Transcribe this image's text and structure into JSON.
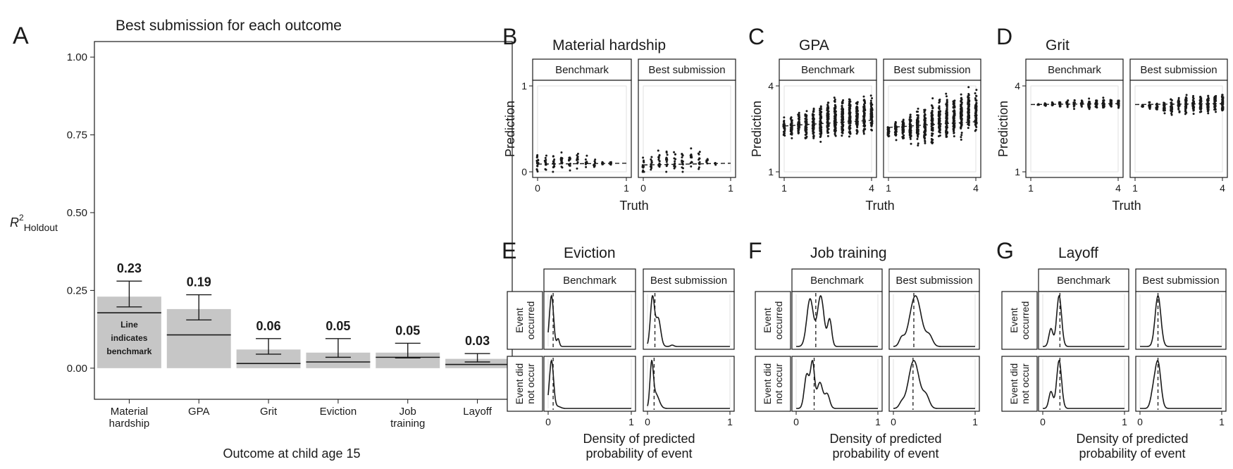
{
  "colors": {
    "bar": "#c6c6c6",
    "ink": "#1a1a1a",
    "grid": "#e2e2e2",
    "frame": "#1a1a1a"
  },
  "panel_labels": [
    "A",
    "B",
    "C",
    "D",
    "E",
    "F",
    "G"
  ],
  "panel_a": {
    "letter": "A",
    "title": "Best submission for each outcome",
    "xlabel": "Outcome at child age 15",
    "ylabel_main": "R",
    "ylabel_sup": "2",
    "ylabel_sub": "Holdout",
    "annotation": [
      "Line",
      "indicates",
      "benchmark"
    ]
  },
  "facet_labels": {
    "left": "Benchmark",
    "right": "Best submission"
  },
  "row_labels": {
    "top": [
      "Event",
      "occurred"
    ],
    "bottom": [
      "Event did",
      "not occur"
    ]
  },
  "scatter_axis": {
    "xlabel": "Truth",
    "ylabel": "Prediction"
  },
  "density_axis": {
    "xlabel": [
      "Density of predicted",
      "probability of event"
    ]
  },
  "chart_data": [
    {
      "type": "bar",
      "panel": "A",
      "title": "Best submission for each outcome",
      "xlabel": "Outcome at child age 15",
      "ylabel": "R2 Holdout",
      "ylim": [
        -0.1,
        1.05
      ],
      "yticks": [
        "0.00",
        "0.25",
        "0.50",
        "0.75",
        "1.00"
      ],
      "categories": [
        "Material hardship",
        "GPA",
        "Grit",
        "Eviction",
        "Job training",
        "Layoff"
      ],
      "category_lines": [
        [
          "Material",
          "hardship"
        ],
        [
          "GPA"
        ],
        [
          "Grit"
        ],
        [
          "Eviction"
        ],
        [
          "Job",
          "training"
        ],
        [
          "Layoff"
        ]
      ],
      "values": [
        0.23,
        0.19,
        0.06,
        0.05,
        0.05,
        0.03
      ],
      "value_labels": [
        "0.23",
        "0.19",
        "0.06",
        "0.05",
        "0.05",
        "0.03"
      ],
      "benchmark": [
        0.178,
        0.107,
        0.015,
        0.02,
        0.035,
        0.012
      ],
      "error_low": [
        0.197,
        0.155,
        0.045,
        0.035,
        0.033,
        0.02
      ],
      "error_high": [
        0.28,
        0.236,
        0.095,
        0.095,
        0.08,
        0.047
      ]
    },
    {
      "type": "scatter",
      "panel": "B",
      "title": "Material hardship",
      "xlabel": "Truth",
      "ylabel": "Prediction",
      "xlim": [
        0,
        1
      ],
      "ylim": [
        0,
        1
      ],
      "xticks": [
        "0",
        "1"
      ],
      "yticks": [
        "0",
        "1"
      ],
      "truth_levels": [
        0,
        0.09,
        0.18,
        0.27,
        0.36,
        0.45,
        0.55,
        0.64,
        0.73,
        0.82
      ],
      "facets": [
        {
          "name": "Benchmark",
          "center": [
            0.09,
            0.1,
            0.11,
            0.12,
            0.12,
            0.12,
            0.12,
            0.11,
            0.1,
            0.1
          ],
          "spread": [
            0.25,
            0.2,
            0.2,
            0.2,
            0.19,
            0.17,
            0.14,
            0.11,
            0.05,
            0.03
          ],
          "fit": [
            0.09,
            0.1
          ]
        },
        {
          "name": "Best submission",
          "center": [
            0.07,
            0.09,
            0.1,
            0.12,
            0.13,
            0.14,
            0.15,
            0.14,
            0.12,
            0.1
          ],
          "spread": [
            0.2,
            0.2,
            0.2,
            0.22,
            0.22,
            0.2,
            0.2,
            0.17,
            0.08,
            0.03
          ],
          "fit": [
            0.08,
            0.1
          ]
        }
      ]
    },
    {
      "type": "scatter",
      "panel": "C",
      "title": "GPA",
      "xlabel": "Truth",
      "ylabel": "Prediction",
      "xlim": [
        1,
        4
      ],
      "ylim": [
        1,
        4
      ],
      "xticks": [
        "1",
        "4"
      ],
      "yticks": [
        "1",
        "4"
      ],
      "truth_levels": [
        1,
        1.25,
        1.5,
        1.75,
        2,
        2.25,
        2.5,
        2.75,
        3,
        3.25,
        3.5,
        3.75,
        4
      ],
      "facets": [
        {
          "name": "Benchmark",
          "center": [
            2.55,
            2.58,
            2.62,
            2.65,
            2.7,
            2.73,
            2.78,
            2.82,
            2.86,
            2.9,
            2.95,
            2.98,
            3.0
          ],
          "spread": [
            0.5,
            0.6,
            0.7,
            0.85,
            0.95,
            1.05,
            1.1,
            1.15,
            1.15,
            1.15,
            1.1,
            1.0,
            1.0
          ],
          "fit": [
            2.6,
            2.8
          ]
        },
        {
          "name": "Best submission",
          "center": [
            2.4,
            2.45,
            2.5,
            2.55,
            2.6,
            2.65,
            2.72,
            2.8,
            2.88,
            2.95,
            3.0,
            3.05,
            3.1
          ],
          "spread": [
            0.4,
            0.6,
            0.7,
            0.85,
            0.95,
            1.05,
            1.15,
            1.2,
            1.25,
            1.25,
            1.2,
            1.2,
            1.15
          ],
          "fit": [
            2.55,
            2.75
          ]
        }
      ]
    },
    {
      "type": "scatter",
      "panel": "D",
      "title": "Grit",
      "xlabel": "Truth",
      "ylabel": "Prediction",
      "xlim": [
        1,
        4
      ],
      "ylim": [
        1,
        4
      ],
      "xticks": [
        "1",
        "4"
      ],
      "yticks": [
        "1",
        "4"
      ],
      "truth_levels": [
        1.25,
        1.5,
        1.75,
        2,
        2.25,
        2.5,
        2.75,
        3,
        3.25,
        3.5,
        3.75,
        4
      ],
      "facets": [
        {
          "name": "Benchmark",
          "center": [
            3.35,
            3.35,
            3.36,
            3.36,
            3.37,
            3.37,
            3.38,
            3.38,
            3.39,
            3.39,
            3.4,
            3.4
          ],
          "spread": [
            0.05,
            0.12,
            0.15,
            0.18,
            0.2,
            0.24,
            0.26,
            0.28,
            0.3,
            0.3,
            0.3,
            0.28
          ],
          "fit": [
            3.35,
            3.38
          ]
        },
        {
          "name": "Best submission",
          "center": [
            3.3,
            3.3,
            3.25,
            3.25,
            3.3,
            3.3,
            3.32,
            3.35,
            3.38,
            3.4,
            3.42,
            3.42
          ],
          "spread": [
            0.1,
            0.2,
            0.3,
            0.4,
            0.45,
            0.5,
            0.55,
            0.6,
            0.6,
            0.6,
            0.6,
            0.55
          ],
          "fit": [
            3.35,
            3.38
          ]
        }
      ]
    },
    {
      "type": "area",
      "panel": "E",
      "title": "Eviction",
      "xlabel": "Density of predicted probability of event",
      "xlim": [
        0,
        1
      ],
      "xticks": [
        "0",
        "1"
      ],
      "facets": [
        {
          "name": "Benchmark",
          "occurred": {
            "peaks": [
              [
                0.04,
                0.025,
                1.0
              ],
              [
                0.12,
                0.015,
                0.15
              ]
            ],
            "mean": 0.06
          },
          "not_occurred": {
            "peaks": [
              [
                0.04,
                0.025,
                1.0
              ],
              [
                0.12,
                0.03,
                0.04
              ]
            ],
            "mean": 0.06
          }
        },
        {
          "name": "Best submission",
          "occurred": {
            "peaks": [
              [
                0.06,
                0.025,
                0.7
              ],
              [
                0.13,
                0.03,
                0.4
              ],
              [
                0.3,
                0.02,
                0.02
              ]
            ],
            "mean": 0.09
          },
          "not_occurred": {
            "peaks": [
              [
                0.05,
                0.02,
                1.0
              ],
              [
                0.1,
                0.04,
                0.35
              ]
            ],
            "mean": 0.08
          }
        }
      ]
    },
    {
      "type": "area",
      "panel": "F",
      "title": "Job training",
      "xlabel": "Density of predicted probability of event",
      "xlim": [
        0,
        1
      ],
      "xticks": [
        "0",
        "1"
      ],
      "facets": [
        {
          "name": "Benchmark",
          "occurred": {
            "peaks": [
              [
                0.17,
                0.04,
                0.8
              ],
              [
                0.3,
                0.04,
                0.85
              ],
              [
                0.41,
                0.025,
                0.45
              ]
            ],
            "mean": 0.24
          },
          "not_occurred": {
            "peaks": [
              [
                0.13,
                0.03,
                0.72
              ],
              [
                0.2,
                0.025,
                0.95
              ],
              [
                0.29,
                0.035,
                0.55
              ],
              [
                0.38,
                0.03,
                0.3
              ]
            ],
            "mean": 0.22
          }
        },
        {
          "name": "Best submission",
          "occurred": {
            "peaks": [
              [
                0.1,
                0.03,
                0.15
              ],
              [
                0.27,
                0.07,
                1.0
              ],
              [
                0.44,
                0.04,
                0.2
              ]
            ],
            "mean": 0.25
          },
          "not_occurred": {
            "peaks": [
              [
                0.1,
                0.03,
                0.1
              ],
              [
                0.25,
                0.065,
                1.0
              ],
              [
                0.4,
                0.04,
                0.25
              ]
            ],
            "mean": 0.24
          }
        }
      ]
    },
    {
      "type": "area",
      "panel": "G",
      "title": "Layoff",
      "xlabel": "Density of predicted probability of event",
      "xlim": [
        0,
        1
      ],
      "xticks": [
        "0",
        "1"
      ],
      "facets": [
        {
          "name": "Benchmark",
          "occurred": {
            "peaks": [
              [
                0.1,
                0.025,
                0.35
              ],
              [
                0.2,
                0.03,
                1.0
              ]
            ],
            "mean": 0.21
          },
          "not_occurred": {
            "peaks": [
              [
                0.1,
                0.025,
                0.35
              ],
              [
                0.2,
                0.03,
                1.0
              ]
            ],
            "mean": 0.21
          }
        },
        {
          "name": "Best submission",
          "occurred": {
            "peaks": [
              [
                0.22,
                0.035,
                1.0
              ]
            ],
            "mean": 0.22
          },
          "not_occurred": {
            "peaks": [
              [
                0.16,
                0.03,
                0.3
              ],
              [
                0.22,
                0.035,
                0.95
              ]
            ],
            "mean": 0.22
          }
        }
      ]
    }
  ]
}
